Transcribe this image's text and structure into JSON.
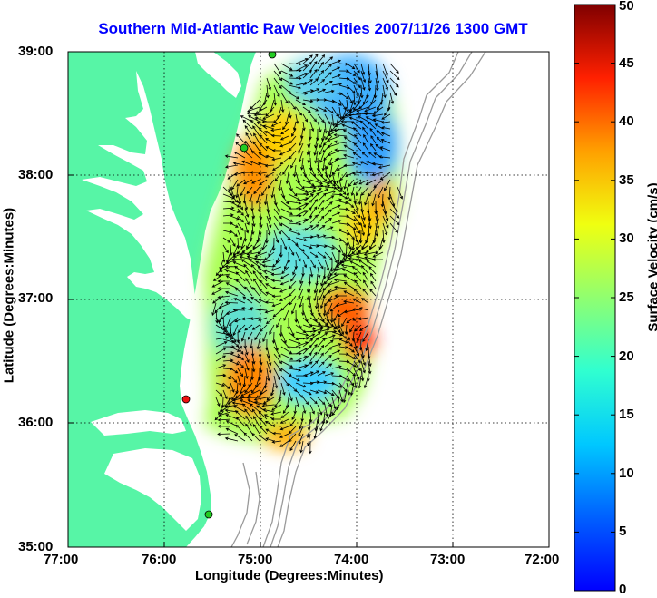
{
  "title": "Southern Mid-Atlantic Raw Velocities 2007/11/26 1300 GMT",
  "xlabel": "Longitude (Degrees:Minutes)",
  "ylabel": "Latitude (Degrees:Minutes)",
  "colorbar_label": "Surface Velocity (cm/s)",
  "x_ticks": [
    "77:00",
    "76:00",
    "75:00",
    "74:00",
    "73:00",
    "72:00"
  ],
  "y_ticks": [
    "39:00",
    "38:00",
    "37:00",
    "36:00",
    "35:00"
  ],
  "colorbar_ticks": [
    "0",
    "5",
    "10",
    "15",
    "20",
    "25",
    "30",
    "35",
    "40",
    "45",
    "50"
  ],
  "colors": {
    "title": "#0000ff",
    "land": "#57f5a6",
    "water": "#ffffff",
    "isobath": "#9a9a9a",
    "arrow": "#000000",
    "site_green": "#22cc22",
    "site_red": "#ee1111"
  },
  "map": {
    "lon_range": [
      -77,
      -72
    ],
    "lat_range": [
      35,
      39
    ],
    "colorbar_range": [
      0,
      50
    ],
    "grid": "dotted"
  }
}
